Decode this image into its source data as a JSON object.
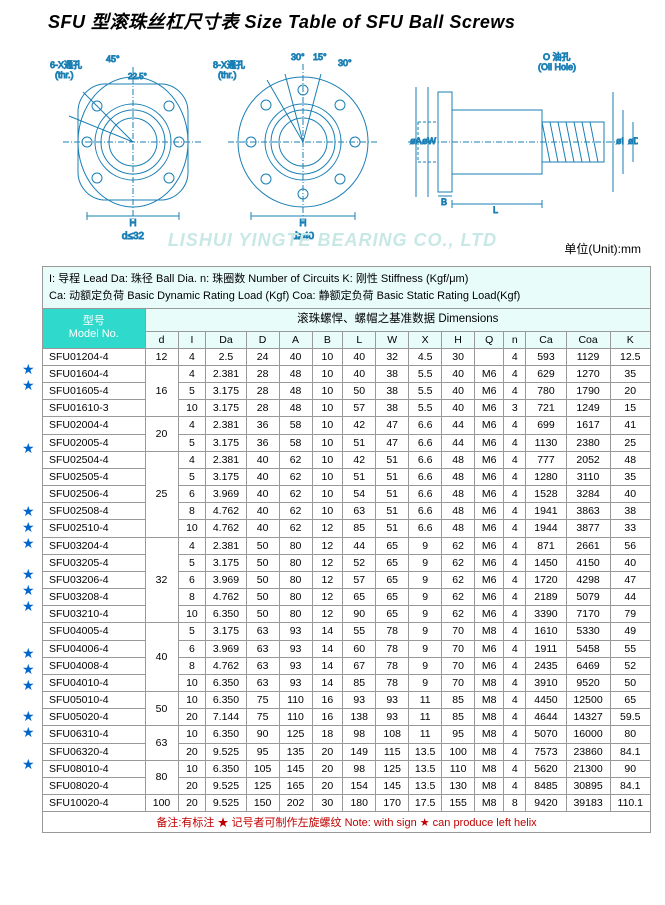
{
  "title": "SFU 型滚珠丝杠尺寸表 Size Table of SFU Ball Screws",
  "watermark": "LISHUI YINGTE BEARING CO., LTD",
  "unit_label": "单位(Unit):mm",
  "diagram": {
    "labels": {
      "l1": "6-X通孔\n(thr.)",
      "l1_ang1": "45°",
      "l1_ang2": "22.5°",
      "l2": "8-X通孔\n(thr.)",
      "l2_ang1": "30°",
      "l2_ang2": "15°",
      "l2_ang3": "30°",
      "l3": "O 油孔\n(Oil Hole)",
      "h": "H",
      "note_d32": "d≤32",
      "note_d40": "d≥40",
      "dims": [
        "øA",
        "øW",
        "B",
        "L",
        "øI",
        "øD"
      ]
    },
    "line_color": "#1a7fb5",
    "text_color": "#1a7fb5"
  },
  "legend": {
    "line1": "I: 导程  Lead    Da: 珠径  Ball Dia.   n: 珠圈数  Number of Circuits      K: 刚性  Stiffness (Kgf/μm)",
    "line2": "Ca: 动额定负荷  Basic Dynamic Rating Load (Kgf)    Coa: 静额定负荷 Basic Static Rating Load(Kgf)"
  },
  "table": {
    "model_header": "型号\nModel No.",
    "dim_header": "滚珠螺悍、螺帽之基准数据  Dimensions",
    "columns": [
      "d",
      "I",
      "Da",
      "D",
      "A",
      "B",
      "L",
      "W",
      "X",
      "H",
      "Q",
      "n",
      "Ca",
      "Coa",
      "K"
    ],
    "col_widths": [
      "4.5%",
      "3.8%",
      "5.5%",
      "4.5%",
      "4.5%",
      "4.2%",
      "4.5%",
      "4.5%",
      "4.5%",
      "4.5%",
      "4%",
      "3%",
      "5.5%",
      "6%",
      "5.5%"
    ],
    "d_groups": [
      {
        "d": "12",
        "span": 1
      },
      {
        "d": "16",
        "span": 3
      },
      {
        "d": "20",
        "span": 2
      },
      {
        "d": "25",
        "span": 5
      },
      {
        "d": "32",
        "span": 5
      },
      {
        "d": "40",
        "span": 4
      },
      {
        "d": "50",
        "span": 2
      },
      {
        "d": "63",
        "span": 2
      },
      {
        "d": "80",
        "span": 2
      },
      {
        "d": "100",
        "span": 1
      }
    ],
    "rows": [
      {
        "m": "SFU01204-4",
        "s": 0,
        "c": [
          "4",
          "2.5",
          "24",
          "40",
          "10",
          "40",
          "32",
          "4.5",
          "30",
          "",
          "4",
          "593",
          "1129",
          "12.5"
        ]
      },
      {
        "m": "SFU01604-4",
        "s": 1,
        "c": [
          "4",
          "2.381",
          "28",
          "48",
          "10",
          "40",
          "38",
          "5.5",
          "40",
          "M6",
          "4",
          "629",
          "1270",
          "35"
        ]
      },
      {
        "m": "SFU01605-4",
        "s": 1,
        "c": [
          "5",
          "3.175",
          "28",
          "48",
          "10",
          "50",
          "38",
          "5.5",
          "40",
          "M6",
          "4",
          "780",
          "1790",
          "20"
        ]
      },
      {
        "m": "SFU01610-3",
        "s": 0,
        "c": [
          "10",
          "3.175",
          "28",
          "48",
          "10",
          "57",
          "38",
          "5.5",
          "40",
          "M6",
          "3",
          "721",
          "1249",
          "15"
        ]
      },
      {
        "m": "SFU02004-4",
        "s": 0,
        "c": [
          "4",
          "2.381",
          "36",
          "58",
          "10",
          "42",
          "47",
          "6.6",
          "44",
          "M6",
          "4",
          "699",
          "1617",
          "41"
        ]
      },
      {
        "m": "SFU02005-4",
        "s": 0,
        "c": [
          "5",
          "3.175",
          "36",
          "58",
          "10",
          "51",
          "47",
          "6.6",
          "44",
          "M6",
          "4",
          "1130",
          "2380",
          "25"
        ]
      },
      {
        "m": "SFU02504-4",
        "s": 1,
        "c": [
          "4",
          "2.381",
          "40",
          "62",
          "10",
          "42",
          "51",
          "6.6",
          "48",
          "M6",
          "4",
          "777",
          "2052",
          "48"
        ]
      },
      {
        "m": "SFU02505-4",
        "s": 0,
        "c": [
          "5",
          "3.175",
          "40",
          "62",
          "10",
          "51",
          "51",
          "6.6",
          "48",
          "M6",
          "4",
          "1280",
          "3110",
          "35"
        ]
      },
      {
        "m": "SFU02506-4",
        "s": 0,
        "c": [
          "6",
          "3.969",
          "40",
          "62",
          "10",
          "54",
          "51",
          "6.6",
          "48",
          "M6",
          "4",
          "1528",
          "3284",
          "40"
        ]
      },
      {
        "m": "SFU02508-4",
        "s": 0,
        "c": [
          "8",
          "4.762",
          "40",
          "62",
          "10",
          "63",
          "51",
          "6.6",
          "48",
          "M6",
          "4",
          "1941",
          "3863",
          "38"
        ]
      },
      {
        "m": "SFU02510-4",
        "s": 1,
        "c": [
          "10",
          "4.762",
          "40",
          "62",
          "12",
          "85",
          "51",
          "6.6",
          "48",
          "M6",
          "4",
          "1944",
          "3877",
          "33"
        ]
      },
      {
        "m": "SFU03204-4",
        "s": 1,
        "c": [
          "4",
          "2.381",
          "50",
          "80",
          "12",
          "44",
          "65",
          "9",
          "62",
          "M6",
          "4",
          "871",
          "2661",
          "56"
        ]
      },
      {
        "m": "SFU03205-4",
        "s": 1,
        "c": [
          "5",
          "3.175",
          "50",
          "80",
          "12",
          "52",
          "65",
          "9",
          "62",
          "M6",
          "4",
          "1450",
          "4150",
          "40"
        ]
      },
      {
        "m": "SFU03206-4",
        "s": 0,
        "c": [
          "6",
          "3.969",
          "50",
          "80",
          "12",
          "57",
          "65",
          "9",
          "62",
          "M6",
          "4",
          "1720",
          "4298",
          "47"
        ]
      },
      {
        "m": "SFU03208-4",
        "s": 1,
        "c": [
          "8",
          "4.762",
          "50",
          "80",
          "12",
          "65",
          "65",
          "9",
          "62",
          "M6",
          "4",
          "2189",
          "5079",
          "44"
        ]
      },
      {
        "m": "SFU03210-4",
        "s": 1,
        "c": [
          "10",
          "6.350",
          "50",
          "80",
          "12",
          "90",
          "65",
          "9",
          "62",
          "M6",
          "4",
          "3390",
          "7170",
          "79"
        ]
      },
      {
        "m": "SFU04005-4",
        "s": 1,
        "c": [
          "5",
          "3.175",
          "63",
          "93",
          "14",
          "55",
          "78",
          "9",
          "70",
          "M8",
          "4",
          "1610",
          "5330",
          "49"
        ]
      },
      {
        "m": "SFU04006-4",
        "s": 0,
        "c": [
          "6",
          "3.969",
          "63",
          "93",
          "14",
          "60",
          "78",
          "9",
          "70",
          "M6",
          "4",
          "1911",
          "5458",
          "55"
        ]
      },
      {
        "m": "SFU04008-4",
        "s": 0,
        "c": [
          "8",
          "4.762",
          "63",
          "93",
          "14",
          "67",
          "78",
          "9",
          "70",
          "M6",
          "4",
          "2435",
          "6469",
          "52"
        ]
      },
      {
        "m": "SFU04010-4",
        "s": 1,
        "c": [
          "10",
          "6.350",
          "63",
          "93",
          "14",
          "85",
          "78",
          "9",
          "70",
          "M8",
          "4",
          "3910",
          "9520",
          "50"
        ]
      },
      {
        "m": "SFU05010-4",
        "s": 1,
        "c": [
          "10",
          "6.350",
          "75",
          "110",
          "16",
          "93",
          "93",
          "11",
          "85",
          "M8",
          "4",
          "4450",
          "12500",
          "65"
        ]
      },
      {
        "m": "SFU05020-4",
        "s": 1,
        "c": [
          "20",
          "7.144",
          "75",
          "110",
          "16",
          "138",
          "93",
          "11",
          "85",
          "M8",
          "4",
          "4644",
          "14327",
          "59.5"
        ]
      },
      {
        "m": "SFU06310-4",
        "s": 0,
        "c": [
          "10",
          "6.350",
          "90",
          "125",
          "18",
          "98",
          "108",
          "11",
          "95",
          "M8",
          "4",
          "5070",
          "16000",
          "80"
        ]
      },
      {
        "m": "SFU06320-4",
        "s": 1,
        "c": [
          "20",
          "9.525",
          "95",
          "135",
          "20",
          "149",
          "115",
          "13.5",
          "100",
          "M8",
          "4",
          "7573",
          "23860",
          "84.1"
        ]
      },
      {
        "m": "SFU08010-4",
        "s": 1,
        "c": [
          "10",
          "6.350",
          "105",
          "145",
          "20",
          "98",
          "125",
          "13.5",
          "110",
          "M8",
          "4",
          "5620",
          "21300",
          "90"
        ]
      },
      {
        "m": "SFU08020-4",
        "s": 0,
        "c": [
          "20",
          "9.525",
          "125",
          "165",
          "20",
          "154",
          "145",
          "13.5",
          "130",
          "M8",
          "4",
          "8485",
          "30895",
          "84.1"
        ]
      },
      {
        "m": "SFU10020-4",
        "s": 1,
        "c": [
          "20",
          "9.525",
          "150",
          "202",
          "30",
          "180",
          "170",
          "17.5",
          "155",
          "M8",
          "8",
          "9420",
          "39183",
          "110.1"
        ]
      }
    ]
  },
  "footer": "备注:有标注 ★  记号者可制作左旋螺纹     Note: with sign ★ can produce left helix"
}
